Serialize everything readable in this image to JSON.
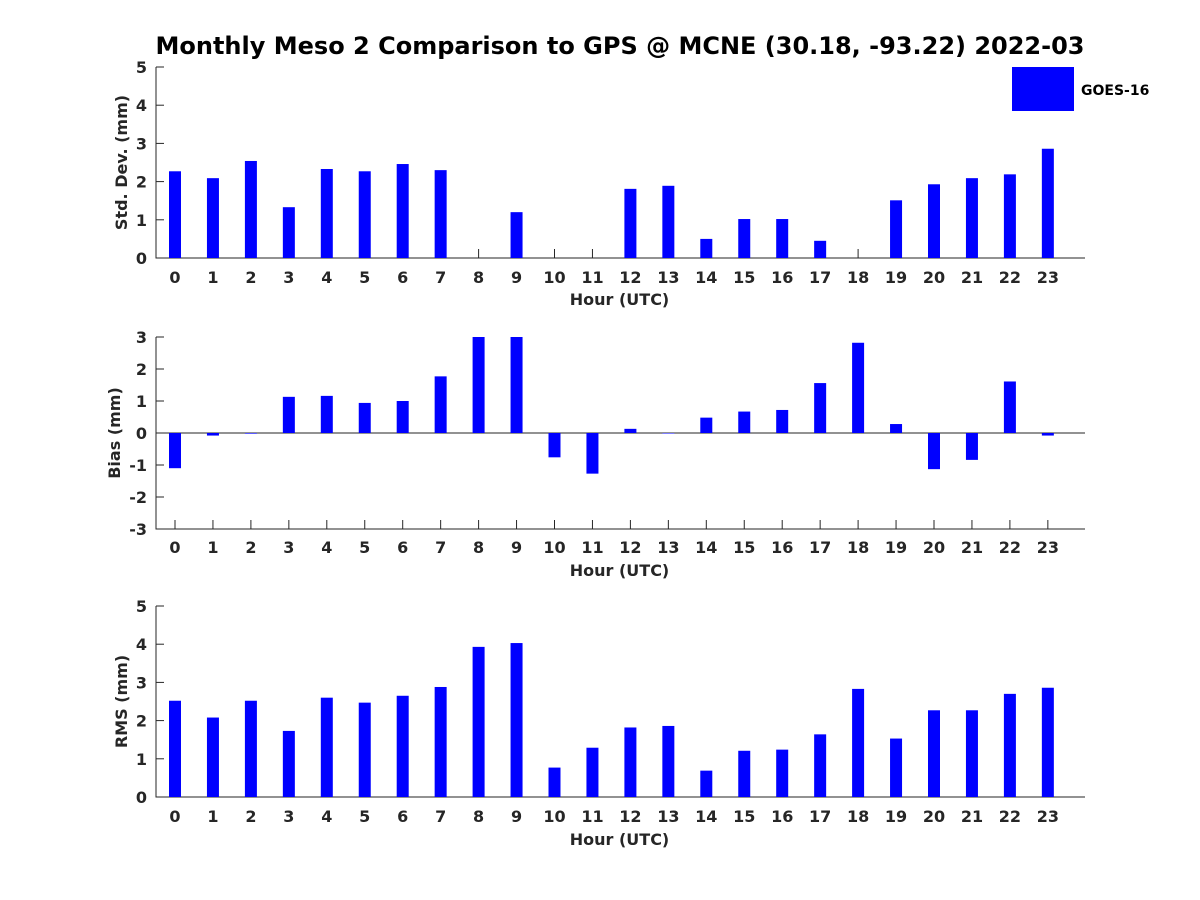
{
  "title": "Monthly Meso 2 Comparison to GPS @ MCNE (30.18, -93.22) 2022-03",
  "legend": {
    "label": "GOES-16",
    "color": "#0000ff"
  },
  "chart_data": [
    {
      "type": "bar",
      "title": "",
      "xlabel": "Hour (UTC)",
      "ylabel": "Std. Dev. (mm)",
      "ylim": [
        0,
        5
      ],
      "yticks": [
        "0",
        "1",
        "2",
        "3",
        "4",
        "5"
      ],
      "categories": [
        "0",
        "1",
        "2",
        "3",
        "4",
        "5",
        "6",
        "7",
        "8",
        "9",
        "10",
        "11",
        "12",
        "13",
        "14",
        "15",
        "16",
        "17",
        "18",
        "19",
        "20",
        "21",
        "22",
        "23"
      ],
      "series": [
        {
          "name": "GOES-16",
          "values": [
            2.27,
            2.09,
            2.54,
            1.33,
            2.33,
            2.27,
            2.46,
            2.3,
            null,
            1.2,
            null,
            null,
            1.81,
            1.89,
            0.5,
            1.02,
            1.02,
            0.45,
            null,
            1.51,
            1.93,
            2.09,
            2.19,
            2.86
          ]
        }
      ]
    },
    {
      "type": "bar",
      "title": "",
      "xlabel": "Hour (UTC)",
      "ylabel": "Bias (mm)",
      "ylim": [
        -3,
        3
      ],
      "yticks": [
        "-3",
        "-2",
        "-1",
        "0",
        "1",
        "2",
        "3"
      ],
      "categories": [
        "0",
        "1",
        "2",
        "3",
        "4",
        "5",
        "6",
        "7",
        "8",
        "9",
        "10",
        "11",
        "12",
        "13",
        "14",
        "15",
        "16",
        "17",
        "18",
        "19",
        "20",
        "21",
        "22",
        "23"
      ],
      "series": [
        {
          "name": "GOES-16",
          "values": [
            -1.1,
            -0.08,
            -0.02,
            1.13,
            1.16,
            0.94,
            1.0,
            1.77,
            3.0,
            3.0,
            -0.76,
            -1.27,
            0.13,
            0.0,
            0.48,
            0.67,
            0.72,
            1.56,
            2.82,
            0.28,
            -1.13,
            -0.84,
            1.61,
            -0.08
          ]
        }
      ]
    },
    {
      "type": "bar",
      "title": "",
      "xlabel": "Hour (UTC)",
      "ylabel": "RMS (mm)",
      "ylim": [
        0,
        5
      ],
      "yticks": [
        "0",
        "1",
        "2",
        "3",
        "4",
        "5"
      ],
      "categories": [
        "0",
        "1",
        "2",
        "3",
        "4",
        "5",
        "6",
        "7",
        "8",
        "9",
        "10",
        "11",
        "12",
        "13",
        "14",
        "15",
        "16",
        "17",
        "18",
        "19",
        "20",
        "21",
        "22",
        "23"
      ],
      "series": [
        {
          "name": "GOES-16",
          "values": [
            2.52,
            2.08,
            2.52,
            1.73,
            2.6,
            2.47,
            2.65,
            2.88,
            3.93,
            4.03,
            0.77,
            1.29,
            1.82,
            1.86,
            0.69,
            1.21,
            1.24,
            1.64,
            2.83,
            1.53,
            2.27,
            2.27,
            2.7,
            2.86
          ]
        }
      ]
    }
  ]
}
